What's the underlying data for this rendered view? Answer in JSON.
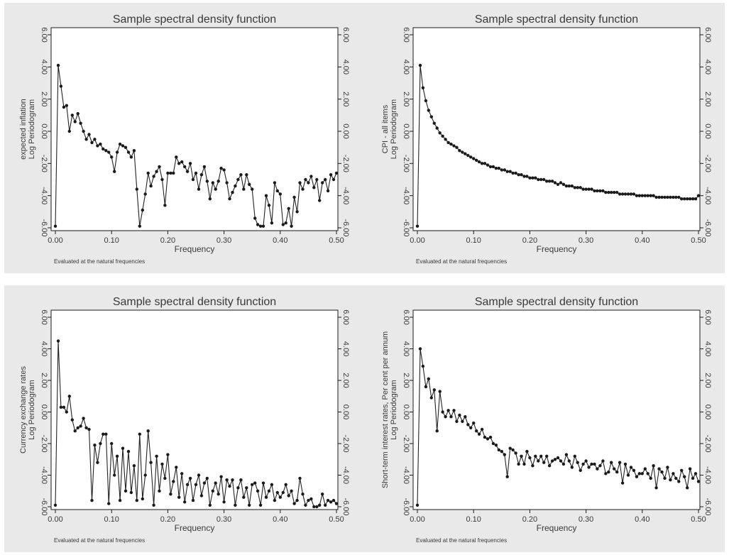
{
  "chart_data": [
    {
      "type": "line",
      "title": "Sample spectral density function",
      "xlabel": "Frequency",
      "ylabel": "expected inflation\nLog Periodogram",
      "note": "Evaluated at the natural frequencies",
      "xlim": [
        0,
        0.5
      ],
      "ylim": [
        -6,
        6
      ],
      "xticks": [
        "0.00",
        "0.10",
        "0.20",
        "0.30",
        "0.40",
        "0.50"
      ],
      "yticks": [
        "6.00",
        "4.00",
        "2.00",
        "0.00",
        "-2.00",
        "-4.00",
        "-6.00"
      ],
      "right_axis": true,
      "grid": false,
      "x": [
        0.0,
        0.005,
        0.01,
        0.015,
        0.02,
        0.025,
        0.03,
        0.035,
        0.04,
        0.045,
        0.05,
        0.055,
        0.06,
        0.065,
        0.07,
        0.075,
        0.08,
        0.085,
        0.09,
        0.095,
        0.1,
        0.105,
        0.11,
        0.115,
        0.12,
        0.125,
        0.13,
        0.135,
        0.14,
        0.145,
        0.15,
        0.155,
        0.16,
        0.165,
        0.17,
        0.175,
        0.18,
        0.185,
        0.19,
        0.195,
        0.2,
        0.205,
        0.21,
        0.215,
        0.22,
        0.225,
        0.23,
        0.235,
        0.24,
        0.245,
        0.25,
        0.255,
        0.26,
        0.265,
        0.27,
        0.275,
        0.28,
        0.285,
        0.29,
        0.295,
        0.3,
        0.305,
        0.31,
        0.315,
        0.32,
        0.325,
        0.33,
        0.335,
        0.34,
        0.345,
        0.35,
        0.355,
        0.36,
        0.365,
        0.37,
        0.375,
        0.38,
        0.385,
        0.39,
        0.395,
        0.4,
        0.405,
        0.41,
        0.415,
        0.42,
        0.425,
        0.43,
        0.435,
        0.44,
        0.445,
        0.45,
        0.455,
        0.46,
        0.465,
        0.47,
        0.475,
        0.48,
        0.485,
        0.49,
        0.495,
        0.5
      ],
      "y": [
        -5.9,
        4.1,
        2.8,
        1.5,
        1.6,
        0.0,
        1.0,
        0.6,
        1.1,
        0.5,
        0.0,
        -0.5,
        -0.2,
        -0.7,
        -0.5,
        -0.9,
        -0.8,
        -1.1,
        -1.2,
        -1.3,
        -1.6,
        -2.5,
        -1.3,
        -0.8,
        -0.9,
        -1.0,
        -1.3,
        -1.6,
        -1.2,
        -3.6,
        -5.9,
        -4.9,
        -3.9,
        -2.6,
        -3.4,
        -2.8,
        -2.5,
        -2.2,
        -3.0,
        -4.6,
        -2.6,
        -2.6,
        -2.6,
        -1.6,
        -2.0,
        -1.9,
        -2.2,
        -2.5,
        -2.0,
        -3.0,
        -2.6,
        -3.6,
        -2.7,
        -2.2,
        -3.1,
        -4.2,
        -3.2,
        -3.6,
        -3.1,
        -2.3,
        -2.4,
        -3.2,
        -4.2,
        -3.8,
        -3.4,
        -3.0,
        -2.7,
        -3.6,
        -2.7,
        -3.3,
        -3.6,
        -5.4,
        -5.8,
        -5.9,
        -5.9,
        -4.0,
        -4.6,
        -5.7,
        -3.2,
        -3.7,
        -3.9,
        -5.8,
        -5.7,
        -4.8,
        -5.9,
        -4.1,
        -5.0,
        -3.2,
        -3.6,
        -3.0,
        -3.2,
        -2.8,
        -3.5,
        -3.0,
        -4.3,
        -3.2,
        -3.0,
        -3.7,
        -2.7,
        -3.0,
        -2.6
      ]
    },
    {
      "type": "line",
      "title": "Sample spectral density function",
      "xlabel": "Frequency",
      "ylabel": "CPI - all items\nLog Periodogram",
      "note": "Evaluated at the natural frequencies",
      "xlim": [
        0,
        0.5
      ],
      "ylim": [
        -6,
        6
      ],
      "xticks": [
        "0.00",
        "0.10",
        "0.20",
        "0.30",
        "0.40",
        "0.50"
      ],
      "yticks": [
        "6.00",
        "4.00",
        "2.00",
        "0.00",
        "-2.00",
        "-4.00",
        "-6.00"
      ],
      "right_axis": true,
      "grid": false,
      "x": [
        0.0,
        0.005,
        0.01,
        0.015,
        0.02,
        0.025,
        0.03,
        0.035,
        0.04,
        0.045,
        0.05,
        0.055,
        0.06,
        0.065,
        0.07,
        0.075,
        0.08,
        0.085,
        0.09,
        0.095,
        0.1,
        0.105,
        0.11,
        0.115,
        0.12,
        0.125,
        0.13,
        0.135,
        0.14,
        0.145,
        0.15,
        0.155,
        0.16,
        0.165,
        0.17,
        0.175,
        0.18,
        0.185,
        0.19,
        0.195,
        0.2,
        0.205,
        0.21,
        0.215,
        0.22,
        0.225,
        0.23,
        0.235,
        0.24,
        0.245,
        0.25,
        0.255,
        0.26,
        0.265,
        0.27,
        0.275,
        0.28,
        0.285,
        0.29,
        0.295,
        0.3,
        0.305,
        0.31,
        0.315,
        0.32,
        0.325,
        0.33,
        0.335,
        0.34,
        0.345,
        0.35,
        0.355,
        0.36,
        0.365,
        0.37,
        0.375,
        0.38,
        0.385,
        0.39,
        0.395,
        0.4,
        0.405,
        0.41,
        0.415,
        0.42,
        0.425,
        0.43,
        0.435,
        0.44,
        0.445,
        0.45,
        0.455,
        0.46,
        0.465,
        0.47,
        0.475,
        0.48,
        0.485,
        0.49,
        0.495,
        0.5
      ],
      "y": [
        -5.9,
        4.1,
        2.7,
        1.9,
        1.3,
        0.9,
        0.5,
        0.2,
        -0.1,
        -0.3,
        -0.5,
        -0.7,
        -0.8,
        -0.9,
        -1.0,
        -1.2,
        -1.3,
        -1.4,
        -1.5,
        -1.6,
        -1.7,
        -1.8,
        -1.9,
        -2.0,
        -2.0,
        -2.1,
        -2.2,
        -2.2,
        -2.3,
        -2.3,
        -2.4,
        -2.4,
        -2.5,
        -2.5,
        -2.6,
        -2.6,
        -2.7,
        -2.7,
        -2.8,
        -2.8,
        -2.9,
        -2.9,
        -2.9,
        -3.0,
        -3.0,
        -3.0,
        -3.1,
        -3.1,
        -3.1,
        -3.2,
        -3.3,
        -3.2,
        -3.3,
        -3.4,
        -3.4,
        -3.4,
        -3.5,
        -3.5,
        -3.5,
        -3.6,
        -3.6,
        -3.6,
        -3.6,
        -3.7,
        -3.7,
        -3.7,
        -3.7,
        -3.8,
        -3.8,
        -3.8,
        -3.8,
        -3.8,
        -3.9,
        -3.9,
        -3.9,
        -3.9,
        -3.9,
        -3.9,
        -4.0,
        -4.0,
        -4.0,
        -4.0,
        -4.0,
        -4.0,
        -4.0,
        -4.1,
        -4.1,
        -4.1,
        -4.1,
        -4.1,
        -4.1,
        -4.1,
        -4.1,
        -4.1,
        -4.2,
        -4.2,
        -4.2,
        -4.2,
        -4.2,
        -4.2,
        -4.0
      ]
    },
    {
      "type": "line",
      "title": "Sample spectral density function",
      "xlabel": "Frequency",
      "ylabel": "Currency exchange rates\nLog Periodogram",
      "note": "Evaluated at the natural frequencies",
      "xlim": [
        0,
        0.5
      ],
      "ylim": [
        -6,
        6
      ],
      "xticks": [
        "0.00",
        "0.10",
        "0.20",
        "0.30",
        "0.40",
        "0.50"
      ],
      "yticks": [
        "6.00",
        "4.00",
        "2.00",
        "0.00",
        "-2.00",
        "-4.00",
        "-6.00"
      ],
      "right_axis": true,
      "grid": false,
      "x": [
        0.0,
        0.005,
        0.01,
        0.015,
        0.02,
        0.025,
        0.03,
        0.035,
        0.04,
        0.045,
        0.05,
        0.055,
        0.06,
        0.065,
        0.07,
        0.075,
        0.08,
        0.085,
        0.09,
        0.095,
        0.1,
        0.105,
        0.11,
        0.115,
        0.12,
        0.125,
        0.13,
        0.135,
        0.14,
        0.145,
        0.15,
        0.155,
        0.16,
        0.165,
        0.17,
        0.175,
        0.18,
        0.185,
        0.19,
        0.195,
        0.2,
        0.205,
        0.21,
        0.215,
        0.22,
        0.225,
        0.23,
        0.235,
        0.24,
        0.245,
        0.25,
        0.255,
        0.26,
        0.265,
        0.27,
        0.275,
        0.28,
        0.285,
        0.29,
        0.295,
        0.3,
        0.305,
        0.31,
        0.315,
        0.32,
        0.325,
        0.33,
        0.335,
        0.34,
        0.345,
        0.35,
        0.355,
        0.36,
        0.365,
        0.37,
        0.375,
        0.38,
        0.385,
        0.39,
        0.395,
        0.4,
        0.405,
        0.41,
        0.415,
        0.42,
        0.425,
        0.43,
        0.435,
        0.44,
        0.445,
        0.45,
        0.455,
        0.46,
        0.465,
        0.47,
        0.475,
        0.48,
        0.485,
        0.49,
        0.495,
        0.5
      ],
      "y": [
        -5.9,
        4.5,
        0.3,
        0.3,
        0.0,
        1.0,
        -0.5,
        -1.2,
        -1.0,
        -0.9,
        -0.4,
        -1.0,
        -1.1,
        -5.6,
        -2.1,
        -3.2,
        -2.0,
        -1.4,
        -1.4,
        -5.8,
        -2.0,
        -4.0,
        -2.8,
        -5.6,
        -2.3,
        -5.0,
        -2.5,
        -5.1,
        -3.4,
        -5.6,
        -1.4,
        -5.5,
        -4.0,
        -1.2,
        -3.2,
        -5.9,
        -2.8,
        -5.0,
        -3.3,
        -4.2,
        -2.7,
        -5.2,
        -4.4,
        -3.5,
        -5.4,
        -3.9,
        -5.7,
        -4.6,
        -4.2,
        -5.6,
        -4.6,
        -4.0,
        -5.3,
        -4.5,
        -4.2,
        -5.9,
        -5.0,
        -4.5,
        -5.2,
        -4.1,
        -5.7,
        -4.3,
        -4.7,
        -4.3,
        -5.9,
        -4.8,
        -4.3,
        -5.4,
        -4.8,
        -5.9,
        -4.6,
        -4.5,
        -5.0,
        -5.9,
        -4.5,
        -5.4,
        -5.0,
        -4.6,
        -5.6,
        -5.1,
        -5.4,
        -5.1,
        -4.6,
        -5.3,
        -5.0,
        -5.8,
        -5.6,
        -4.2,
        -5.2,
        -5.9,
        -5.6,
        -5.5,
        -6.0,
        -6.0,
        -5.9,
        -5.2,
        -5.9,
        -5.6,
        -5.7,
        -5.6,
        -5.8
      ]
    },
    {
      "type": "line",
      "title": "Sample spectral density function",
      "xlabel": "Frequency",
      "ylabel": "Short-term interest rates, Per cent per annum\nLog Periodogram",
      "note": "Evaluated at the natural frequencies",
      "xlim": [
        0,
        0.5
      ],
      "ylim": [
        -6,
        6
      ],
      "xticks": [
        "0.00",
        "0.10",
        "0.20",
        "0.30",
        "0.40",
        "0.50"
      ],
      "yticks": [
        "6.00",
        "4.00",
        "2.00",
        "0.00",
        "-2.00",
        "-4.00",
        "-6.00"
      ],
      "right_axis": true,
      "grid": false,
      "x": [
        0.0,
        0.005,
        0.01,
        0.015,
        0.02,
        0.025,
        0.03,
        0.035,
        0.04,
        0.045,
        0.05,
        0.055,
        0.06,
        0.065,
        0.07,
        0.075,
        0.08,
        0.085,
        0.09,
        0.095,
        0.1,
        0.105,
        0.11,
        0.115,
        0.12,
        0.125,
        0.13,
        0.135,
        0.14,
        0.145,
        0.15,
        0.155,
        0.16,
        0.165,
        0.17,
        0.175,
        0.18,
        0.185,
        0.19,
        0.195,
        0.2,
        0.205,
        0.21,
        0.215,
        0.22,
        0.225,
        0.23,
        0.235,
        0.24,
        0.245,
        0.25,
        0.255,
        0.26,
        0.265,
        0.27,
        0.275,
        0.28,
        0.285,
        0.29,
        0.295,
        0.3,
        0.305,
        0.31,
        0.315,
        0.32,
        0.325,
        0.33,
        0.335,
        0.34,
        0.345,
        0.35,
        0.355,
        0.36,
        0.365,
        0.37,
        0.375,
        0.38,
        0.385,
        0.39,
        0.395,
        0.4,
        0.405,
        0.41,
        0.415,
        0.42,
        0.425,
        0.43,
        0.435,
        0.44,
        0.445,
        0.45,
        0.455,
        0.46,
        0.465,
        0.47,
        0.475,
        0.48,
        0.485,
        0.49,
        0.495,
        0.5
      ],
      "y": [
        -5.9,
        4.0,
        2.9,
        1.6,
        2.1,
        0.9,
        1.4,
        -1.2,
        1.3,
        0.0,
        -0.3,
        0.1,
        -0.3,
        0.1,
        -0.6,
        -0.2,
        -0.6,
        -0.3,
        -0.8,
        -1.0,
        -0.7,
        -1.2,
        -1.4,
        -1.1,
        -1.6,
        -1.7,
        -1.6,
        -2.0,
        -2.1,
        -2.4,
        -2.5,
        -2.7,
        -4.1,
        -2.3,
        -2.4,
        -2.6,
        -3.3,
        -2.8,
        -3.3,
        -2.5,
        -2.9,
        -3.4,
        -2.8,
        -3.1,
        -2.8,
        -3.2,
        -2.8,
        -3.4,
        -3.1,
        -3.0,
        -2.9,
        -3.1,
        -3.3,
        -2.7,
        -3.1,
        -3.5,
        -2.8,
        -3.2,
        -3.7,
        -3.3,
        -3.1,
        -3.5,
        -3.3,
        -3.3,
        -3.6,
        -3.4,
        -3.1,
        -3.9,
        -3.8,
        -3.2,
        -3.6,
        -3.8,
        -3.2,
        -4.5,
        -3.3,
        -4.0,
        -3.5,
        -3.7,
        -4.1,
        -3.9,
        -3.9,
        -3.6,
        -3.9,
        -4.2,
        -3.4,
        -4.8,
        -3.6,
        -3.8,
        -4.2,
        -3.5,
        -4.3,
        -3.9,
        -4.2,
        -4.4,
        -3.7,
        -4.1,
        -4.8,
        -3.6,
        -4.2,
        -3.9,
        -4.4
      ]
    }
  ]
}
